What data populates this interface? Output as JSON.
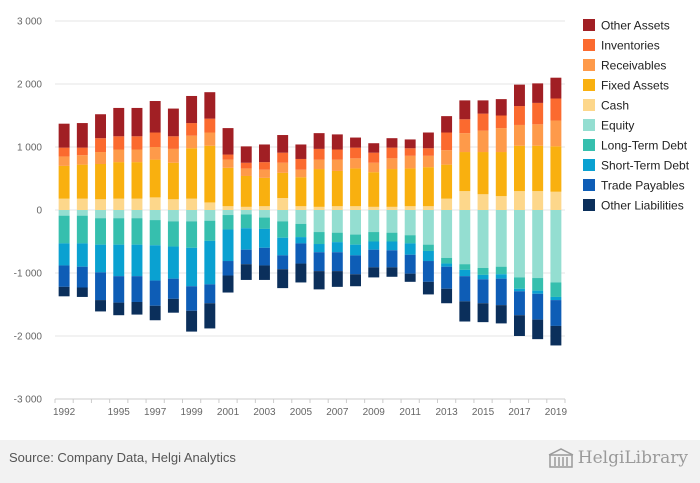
{
  "chart_data": {
    "type": "bar",
    "stacked": true,
    "categories": [
      "1992",
      "1993",
      "1994",
      "1995",
      "1996",
      "1997",
      "1998",
      "1999",
      "2000",
      "2001",
      "2002",
      "2003",
      "2004",
      "2005",
      "2006",
      "2007",
      "2008",
      "2009",
      "2010",
      "2011",
      "2012",
      "2013",
      "2014",
      "2015",
      "2016",
      "2017",
      "2018",
      "2019"
    ],
    "x_tick_labels": [
      "1992",
      "1995",
      "1997",
      "1999",
      "2001",
      "2003",
      "2005",
      "2007",
      "2009",
      "2011",
      "2013",
      "2015",
      "2017",
      "2019"
    ],
    "ylim": [
      -3000,
      3000
    ],
    "yticks": [
      -3000,
      -2000,
      -1000,
      0,
      1000,
      2000,
      3000
    ],
    "ytick_labels": [
      "-3 000",
      "-2 000",
      "-1 000",
      "0",
      "1 000",
      "2 000",
      "3 000"
    ],
    "grid": true,
    "legend_position": "right",
    "assets": [
      {
        "name": "Cash",
        "color": "#fdd78b",
        "values": [
          180,
          180,
          170,
          180,
          180,
          200,
          170,
          180,
          120,
          60,
          50,
          60,
          190,
          60,
          50,
          60,
          60,
          50,
          50,
          60,
          60,
          180,
          300,
          250,
          220,
          300,
          300,
          290
        ]
      },
      {
        "name": "Fixed Assets",
        "color": "#f9b00f",
        "values": [
          520,
          540,
          560,
          580,
          580,
          600,
          580,
          800,
          900,
          610,
          490,
          450,
          400,
          460,
          600,
          560,
          600,
          550,
          600,
          600,
          620,
          540,
          620,
          670,
          700,
          720,
          720,
          720
        ]
      },
      {
        "name": "Receivables",
        "color": "#fe9a4a",
        "values": [
          150,
          150,
          190,
          200,
          200,
          200,
          220,
          200,
          210,
          130,
          120,
          130,
          160,
          120,
          150,
          180,
          160,
          150,
          170,
          200,
          180,
          230,
          300,
          340,
          380,
          330,
          340,
          410
        ]
      },
      {
        "name": "Inventories",
        "color": "#fb6a2f",
        "values": [
          140,
          120,
          220,
          210,
          210,
          230,
          200,
          200,
          220,
          80,
          90,
          120,
          160,
          170,
          170,
          160,
          170,
          160,
          170,
          120,
          120,
          280,
          220,
          270,
          200,
          300,
          340,
          350
        ]
      },
      {
        "name": "Other Assets",
        "color": "#a11f24",
        "values": [
          380,
          390,
          380,
          450,
          450,
          500,
          440,
          430,
          420,
          420,
          260,
          280,
          280,
          230,
          250,
          240,
          160,
          150,
          150,
          140,
          250,
          260,
          300,
          210,
          260,
          340,
          310,
          330
        ]
      }
    ],
    "liabilities": [
      {
        "name": "Equity",
        "color": "#94ded1",
        "values": [
          -90,
          -90,
          -130,
          -130,
          -130,
          -160,
          -180,
          -180,
          -170,
          -80,
          -70,
          -120,
          -180,
          -220,
          -350,
          -360,
          -390,
          -350,
          -360,
          -400,
          -550,
          -760,
          -860,
          -920,
          -900,
          -1070,
          -1080,
          -1150
        ]
      },
      {
        "name": "Long-Term Debt",
        "color": "#36bfae",
        "values": [
          -440,
          -440,
          -420,
          -420,
          -420,
          -400,
          -400,
          -420,
          -320,
          -230,
          -220,
          -180,
          -260,
          -210,
          -190,
          -150,
          -160,
          -150,
          -140,
          -130,
          -100,
          -90,
          -90,
          -110,
          -120,
          -180,
          -200,
          -230
        ]
      },
      {
        "name": "Short-Term Debt",
        "color": "#0aa1d1",
        "values": [
          -350,
          -370,
          -440,
          -500,
          -500,
          -560,
          -510,
          -610,
          -690,
          -500,
          -340,
          -300,
          -280,
          -100,
          -130,
          -160,
          -170,
          -130,
          -140,
          -180,
          -160,
          -50,
          -100,
          -70,
          -70,
          -40,
          -50,
          -50
        ]
      },
      {
        "name": "Trade Payables",
        "color": "#0e5db6",
        "values": [
          -340,
          -330,
          -440,
          -420,
          -410,
          -400,
          -320,
          -390,
          -300,
          -230,
          -230,
          -280,
          -220,
          -320,
          -300,
          -300,
          -300,
          -280,
          -270,
          -300,
          -330,
          -350,
          -400,
          -380,
          -420,
          -380,
          -410,
          -410
        ]
      },
      {
        "name": "Other Liabilities",
        "color": "#0b2f5b",
        "values": [
          -150,
          -150,
          -180,
          -200,
          -200,
          -230,
          -220,
          -330,
          -400,
          -270,
          -250,
          -230,
          -300,
          -300,
          -290,
          -250,
          -190,
          -160,
          -150,
          -130,
          -200,
          -230,
          -320,
          -300,
          -290,
          -330,
          -310,
          -310
        ]
      }
    ],
    "legend": [
      "Other Assets",
      "Inventories",
      "Receivables",
      "Fixed Assets",
      "Cash",
      "Equity",
      "Long-Term Debt",
      "Short-Term Debt",
      "Trade Payables",
      "Other Liabilities"
    ]
  },
  "footer": {
    "source": "Source: Company Data, Helgi Analytics",
    "brand": "HelgiLibrary",
    "brand_icon": "building-icon"
  },
  "colors": {
    "grid": "#e6e6e6",
    "axis": "#cccccc",
    "footer_bg": "#f2f2f2"
  }
}
